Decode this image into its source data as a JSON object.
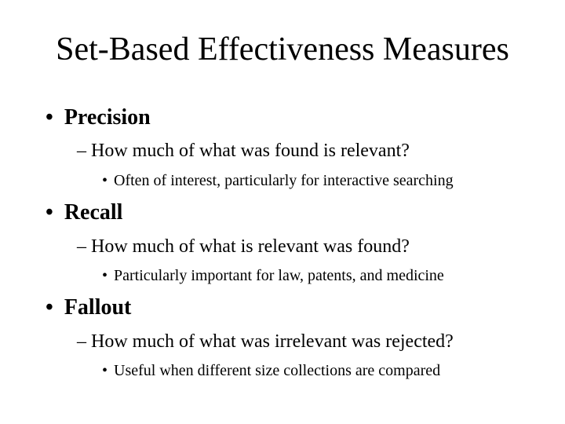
{
  "slide": {
    "title": "Set-Based Effectiveness Measures",
    "bullet_symbol": "•",
    "dash_symbol": "–",
    "items": [
      {
        "heading": "Precision",
        "question": "How much of what was found is relevant?",
        "note": "Often of interest, particularly for interactive searching"
      },
      {
        "heading": "Recall",
        "question": "How much of what is relevant was found?",
        "note": "Particularly important for law, patents, and medicine"
      },
      {
        "heading": "Fallout",
        "question": "How much of what was irrelevant was rejected?",
        "note": "Useful when different size collections are compared"
      }
    ]
  }
}
